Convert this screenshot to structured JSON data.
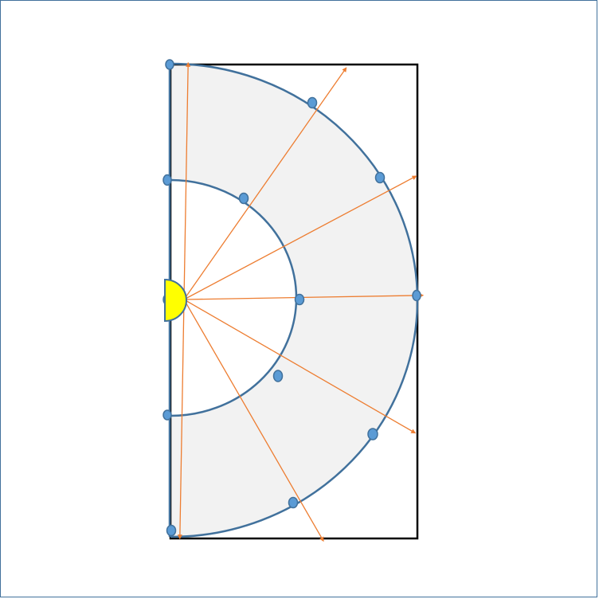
{
  "diagram": {
    "colors": {
      "frame_border": "#41719c",
      "box_stroke": "#000000",
      "annulus_fill": "#f2f2f2",
      "arc_stroke": "#41719c",
      "ray_color": "#ed7d31",
      "point_fill": "#5b9bd5",
      "point_stroke": "#41719c",
      "source_fill": "#ffff00",
      "source_stroke": "#41719c"
    },
    "rays": [
      {
        "id": "ray-up",
        "angle_deg": 89
      },
      {
        "id": "ray-upper-right-steep",
        "angle_deg": 55
      },
      {
        "id": "ray-upper-right-shallow",
        "angle_deg": 28
      },
      {
        "id": "ray-horizontal",
        "angle_deg": 1
      },
      {
        "id": "ray-lower-right-shallow",
        "angle_deg": -30
      },
      {
        "id": "ray-lower-right-steep",
        "angle_deg": -60
      },
      {
        "id": "ray-down",
        "angle_deg": -91
      }
    ]
  }
}
